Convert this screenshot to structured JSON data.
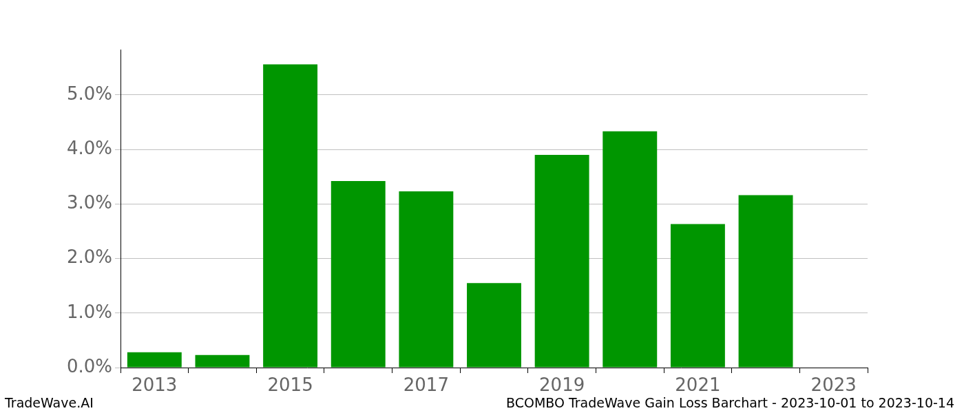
{
  "chart_data": {
    "type": "bar",
    "categories": [
      "2013",
      null,
      "2015",
      null,
      "2017",
      null,
      "2019",
      null,
      "2021",
      null,
      "2023"
    ],
    "values": [
      0.28,
      0.23,
      5.56,
      3.42,
      3.23,
      1.55,
      3.9,
      4.33,
      2.63,
      3.16,
      0
    ],
    "color": "#009600",
    "ylim": [
      0,
      5.83
    ],
    "yticks": [
      {
        "value": 0,
        "label": "0.0%"
      },
      {
        "value": 1,
        "label": "1.0%"
      },
      {
        "value": 2,
        "label": "2.0%"
      },
      {
        "value": 3,
        "label": "3.0%"
      },
      {
        "value": 4,
        "label": "4.0%"
      },
      {
        "value": 5,
        "label": "5.0%"
      }
    ],
    "grid": true,
    "annotations": [
      "TradeWave.AI",
      "BCOMBO TradeWave Gain Loss Barchart - 2023-10-01 to 2023-10-14"
    ]
  }
}
